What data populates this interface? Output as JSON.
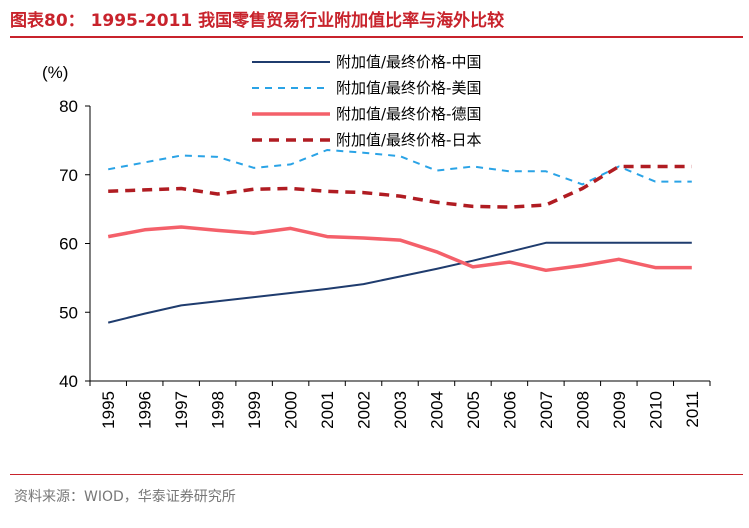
{
  "header": {
    "title": "图表80：  1995-2011 我国零售贸易行业附加值比率与海外比较"
  },
  "footer": {
    "source": "资料来源：WIOD，华泰证券研究所"
  },
  "colors": {
    "accent": "#c8232c",
    "china": "#1f3c6e",
    "usa": "#2aa3e6",
    "germany": "#f4606a",
    "japan": "#b01c22"
  },
  "chart_data": {
    "type": "line",
    "title": "1995-2011 我国零售贸易行业附加值比率与海外比较",
    "ylabel": "(%)",
    "xlabel": "",
    "ylim": [
      40,
      80
    ],
    "yticks": [
      40,
      50,
      60,
      70,
      80
    ],
    "categories": [
      "1995",
      "1996",
      "1997",
      "1998",
      "1999",
      "2000",
      "2001",
      "2002",
      "2003",
      "2004",
      "2005",
      "2006",
      "2007",
      "2008",
      "2009",
      "2010",
      "2011"
    ],
    "legend_position": "top-center",
    "series": [
      {
        "name": "附加值/最终价格-中国",
        "style": "solid-thin",
        "values": [
          48.5,
          49.8,
          51.0,
          51.6,
          52.2,
          52.8,
          53.4,
          54.1,
          55.2,
          56.3,
          57.5,
          58.8,
          60.1,
          60.1,
          60.1,
          60.1,
          60.1
        ]
      },
      {
        "name": "附加值/最终价格-美国",
        "style": "dashed-thin",
        "values": [
          70.8,
          71.8,
          72.8,
          72.6,
          71.0,
          71.5,
          73.6,
          73.2,
          72.7,
          70.6,
          71.2,
          70.5,
          70.5,
          68.6,
          71.2,
          69.0,
          69.0
        ]
      },
      {
        "name": "附加值/最终价格-德国",
        "style": "solid-thick",
        "values": [
          61.0,
          62.0,
          62.4,
          61.9,
          61.5,
          62.2,
          61.0,
          60.8,
          60.5,
          58.8,
          56.6,
          57.3,
          56.1,
          56.8,
          57.7,
          56.5,
          56.5
        ]
      },
      {
        "name": "附加值/最终价格-日本",
        "style": "dashed-thick",
        "values": [
          67.6,
          67.8,
          68.0,
          67.2,
          67.9,
          68.0,
          67.6,
          67.4,
          66.9,
          66.0,
          65.4,
          65.3,
          65.6,
          68.0,
          71.2,
          71.2,
          71.2
        ]
      }
    ]
  }
}
